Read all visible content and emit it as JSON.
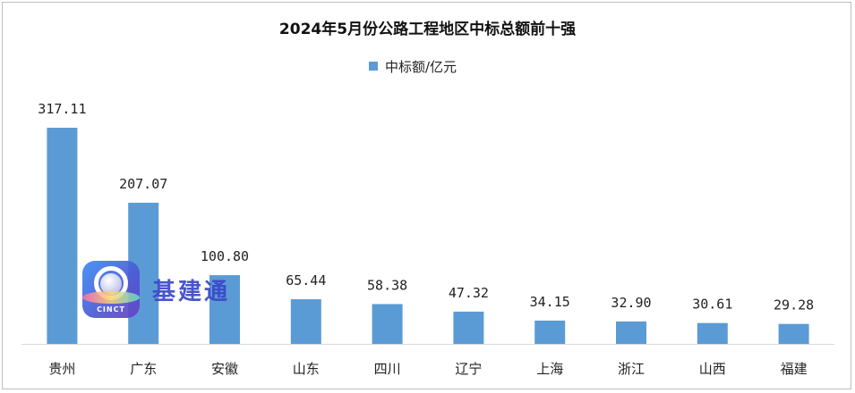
{
  "colors": {
    "bar": "#5b9bd5",
    "axis": "#d9d9d9"
  },
  "chart_data": {
    "type": "bar",
    "title": "2024年5月份公路工程地区中标总额前十强",
    "legend_position": "top-center",
    "ylim": [
      0,
      317.11
    ],
    "grid": false,
    "categories": [
      "贵州",
      "广东",
      "安徽",
      "山东",
      "四川",
      "辽宁",
      "上海",
      "浙江",
      "山西",
      "福建"
    ],
    "series": [
      {
        "name": "中标额/亿元",
        "values": [
          317.11,
          207.07,
          100.8,
          65.44,
          58.38,
          47.32,
          34.15,
          32.9,
          30.61,
          29.28
        ],
        "labels": [
          "317.11",
          "207.07",
          "100.80",
          "65.44",
          "58.38",
          "47.32",
          "34.15",
          "32.90",
          "30.61",
          "29.28"
        ]
      }
    ]
  },
  "watermark": {
    "logo_text": "CINCT",
    "logo_icon": "cinct-logo-icon",
    "brand_text": "基建通"
  }
}
